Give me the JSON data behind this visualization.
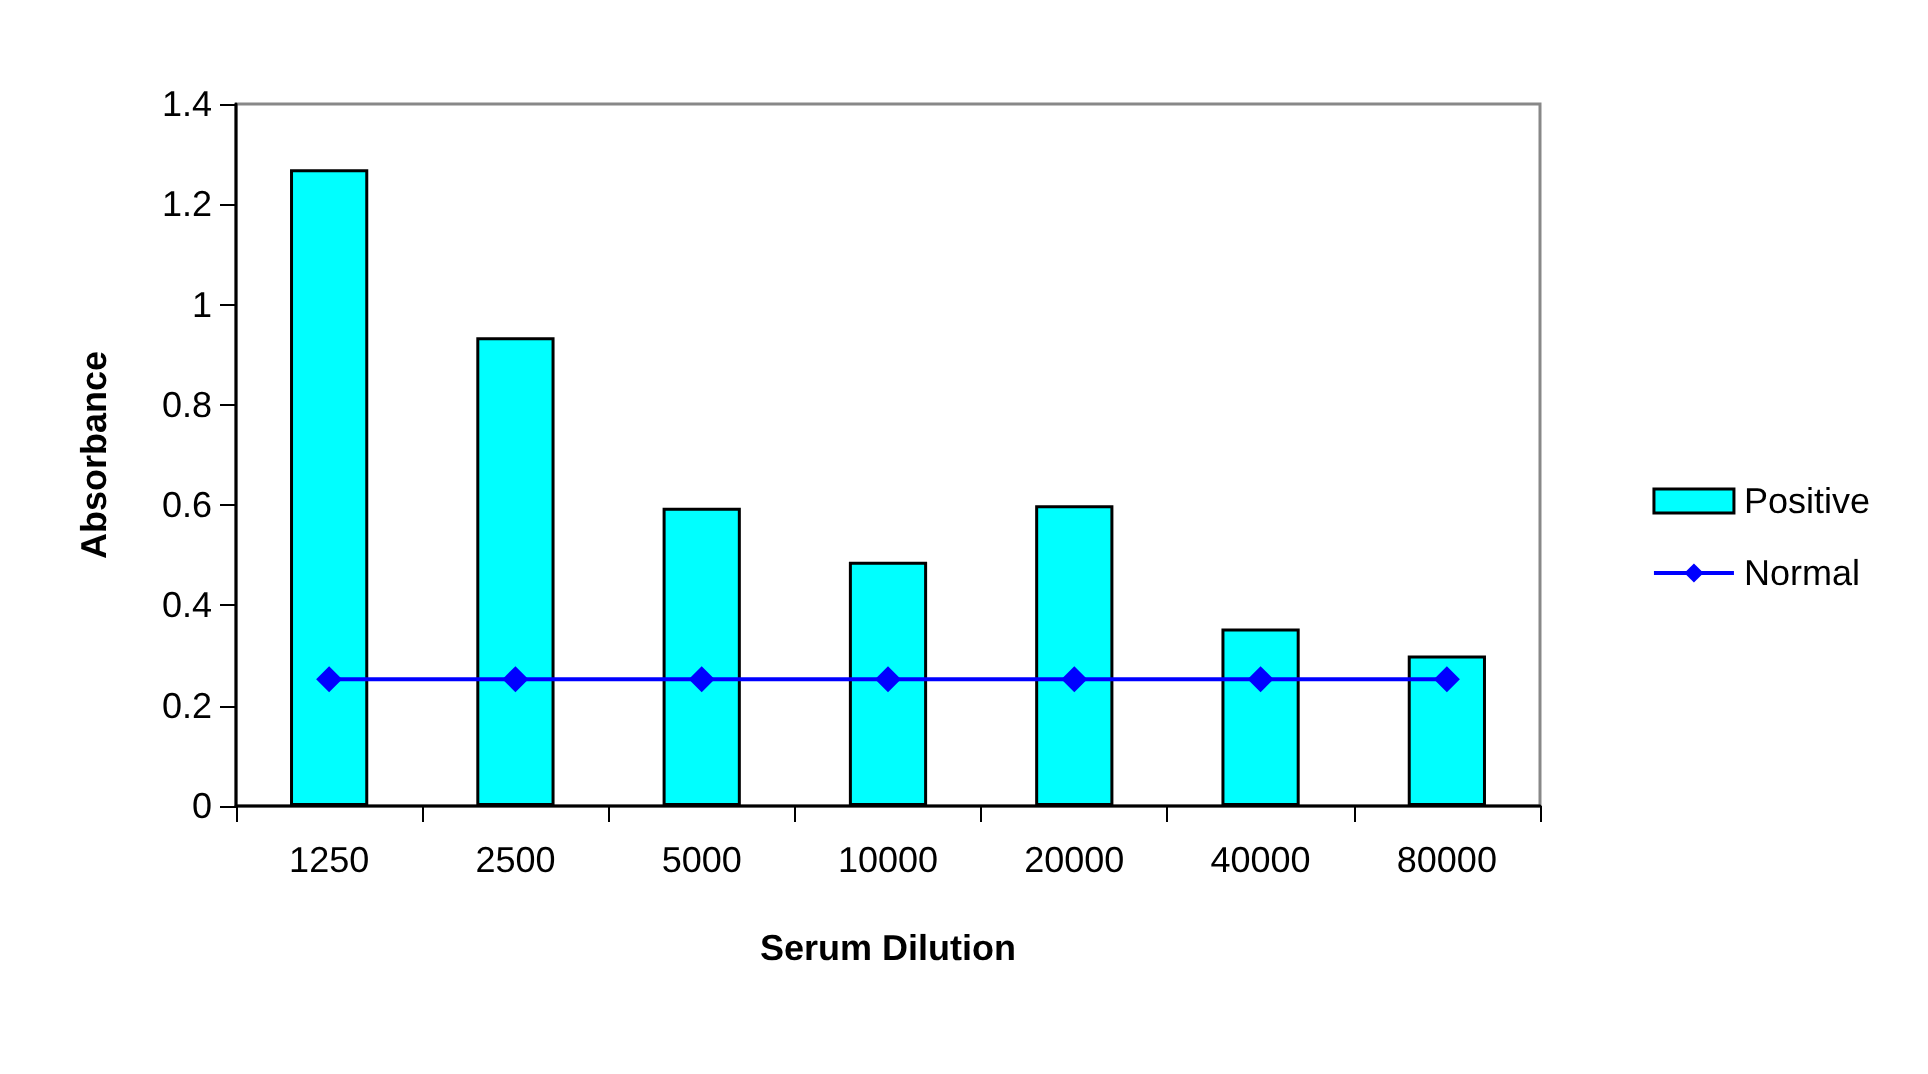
{
  "chart_data": {
    "type": "bar",
    "xlabel": "Serum Dilution",
    "ylabel": "Absorbance",
    "categories": [
      "1250",
      "2500",
      "5000",
      "10000",
      "20000",
      "40000",
      "80000"
    ],
    "series": [
      {
        "name": "Positive",
        "color": "#00ffff",
        "values": [
          1.27,
          0.935,
          0.595,
          0.487,
          0.6,
          0.354,
          0.3
        ]
      },
      {
        "name": "Normal",
        "type": "line",
        "color": "#0000ff",
        "marker": "diamond",
        "values": [
          0.253,
          0.253,
          0.253,
          0.253,
          0.253,
          0.253,
          0.253
        ]
      }
    ],
    "ylim": [
      0,
      1.4
    ],
    "yticks": [
      0,
      0.2,
      0.4,
      0.6,
      0.8,
      1,
      1.2,
      1.4
    ],
    "grid": false,
    "legend": "right"
  }
}
